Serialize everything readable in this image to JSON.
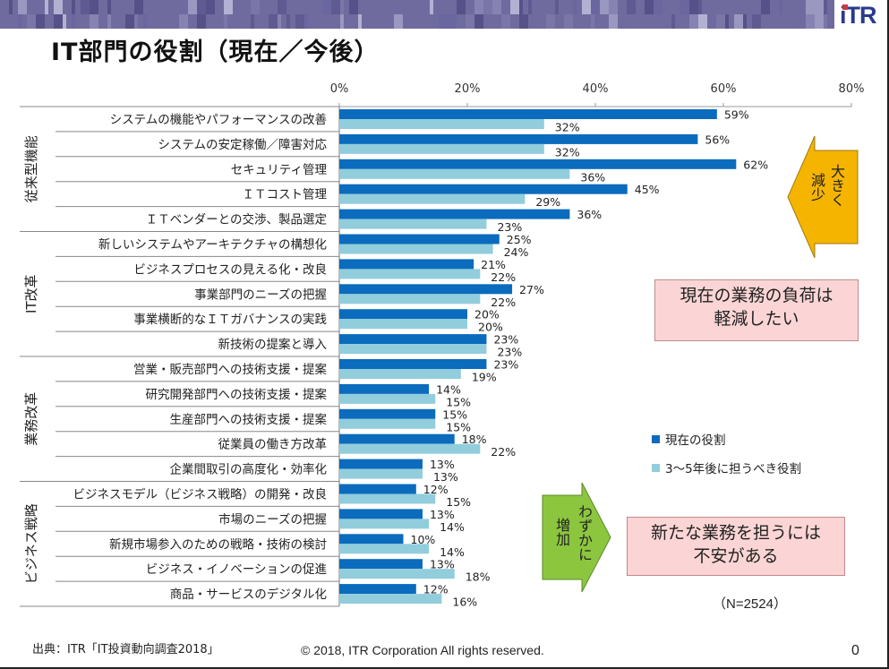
{
  "header": {
    "logo_text": "iTR",
    "title": "IT部門の役割（現在／今後）"
  },
  "colors": {
    "current": "#0b6bbd",
    "future": "#92cddc",
    "banner": "#6f6b9e",
    "callout_bg": "#fbd5d5",
    "decrease_arrow": "#f4b400",
    "increase_arrow": "#8cc63f"
  },
  "chart_data": {
    "type": "bar",
    "orientation": "horizontal",
    "title": "IT部門の役割（現在／今後）",
    "xlabel": "",
    "ylabel": "",
    "xlim": [
      0,
      80
    ],
    "x_ticks": [
      "0%",
      "20%",
      "40%",
      "60%",
      "80%"
    ],
    "x_tick_values": [
      0,
      20,
      40,
      60,
      80
    ],
    "grid": false,
    "legend_position": "right",
    "groups": [
      {
        "name": "従来型機能",
        "start": 0,
        "count": 5
      },
      {
        "name": "IT改革",
        "start": 5,
        "count": 5
      },
      {
        "name": "業務改革",
        "start": 10,
        "count": 5
      },
      {
        "name": "ビジネス戦略",
        "start": 15,
        "count": 5
      }
    ],
    "categories": [
      "システムの機能やパフォーマンスの改善",
      "システムの安定稼働／障害対応",
      "セキュリティ管理",
      "ＩＴコスト管理",
      "ＩＴベンダーとの交渉、製品選定",
      "新しいシステムやアーキテクチャの構想化",
      "ビジネスプロセスの見える化・改良",
      "事業部門のニーズの把握",
      "事業横断的なＩＴガバナンスの実践",
      "新技術の提案と導入",
      "営業・販売部門への技術支援・提案",
      "研究開発部門への技術支援・提案",
      "生産部門への技術支援・提案",
      "従業員の働き方改革",
      "企業間取引の高度化・効率化",
      "ビジネスモデル（ビジネス戦略）の開発・改良",
      "市場のニーズの把握",
      "新規市場参入のための戦略・技術の検討",
      "ビジネス・イノベーションの促進",
      "商品・サービスのデジタル化"
    ],
    "series": [
      {
        "name": "現在の役割",
        "color": "#0b6bbd",
        "values": [
          59,
          56,
          62,
          45,
          36,
          25,
          21,
          27,
          20,
          23,
          23,
          14,
          15,
          18,
          13,
          12,
          13,
          10,
          13,
          12
        ]
      },
      {
        "name": "3～5年後に担うべき役割",
        "color": "#92cddc",
        "values": [
          32,
          32,
          36,
          29,
          23,
          24,
          22,
          22,
          20,
          23,
          19,
          15,
          15,
          22,
          13,
          15,
          14,
          14,
          18,
          16
        ]
      }
    ],
    "value_suffix": "%"
  },
  "annotations": {
    "decrease_arrow_text": [
      "大きく",
      "減少"
    ],
    "increase_arrow_text": [
      "わずかに",
      "増加"
    ],
    "callout_top": [
      "現在の業務の負荷は",
      "軽減したい"
    ],
    "callout_bottom": [
      "新たな業務を担うには",
      "不安がある"
    ],
    "sample_size": "（N=2524）"
  },
  "legend": {
    "items": [
      "現在の役割",
      "3～5年後に担うべき役割"
    ]
  },
  "footer": {
    "source": "出典：ITR「IT投資動向調査2018」",
    "copyright": "© 2018, ITR Corporation  All rights reserved.",
    "page_number": "0"
  }
}
